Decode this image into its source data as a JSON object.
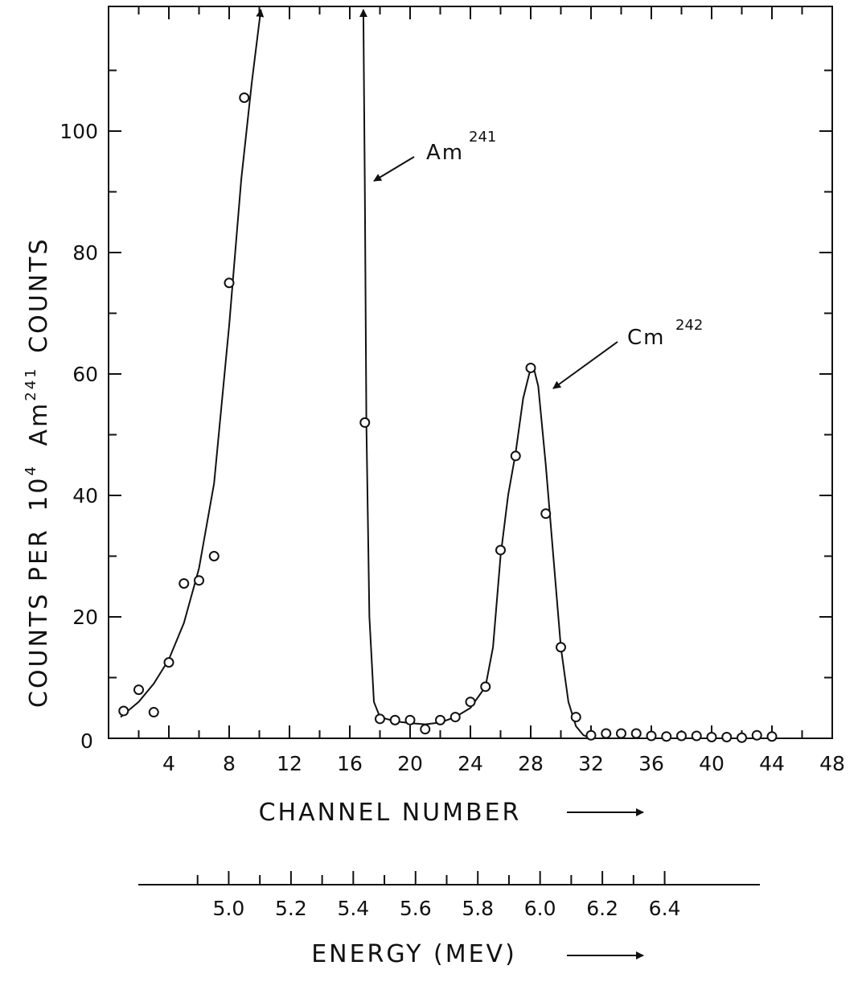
{
  "chart_data": {
    "type": "scatter",
    "ylabel": {
      "base": "COUNTS PER",
      "ten": "10",
      "ten_exp": "4",
      "iso": "Am",
      "iso_exp": "241",
      "tail": "COUNTS"
    },
    "xlabel": "CHANNEL NUMBER",
    "xlim": [
      0,
      48
    ],
    "ylim": [
      0,
      120
    ],
    "x_ticks": [
      4,
      8,
      12,
      16,
      20,
      24,
      28,
      32,
      36,
      40,
      44,
      48
    ],
    "x_tick_labels": [
      "4",
      "8",
      "12",
      "16",
      "20",
      "24",
      "28",
      "32",
      "36",
      "40",
      "44",
      "48"
    ],
    "y_ticks": [
      0,
      20,
      40,
      60,
      80,
      100
    ],
    "y_tick_labels": [
      "0",
      "20",
      "40",
      "60",
      "80",
      "100"
    ],
    "points": {
      "x": [
        1,
        2,
        3,
        4,
        5,
        6,
        7,
        8,
        9,
        17,
        18,
        19,
        20,
        21,
        22,
        23,
        24,
        25,
        26,
        27,
        28,
        29,
        30,
        31,
        32,
        33,
        34,
        35,
        36,
        37,
        38,
        39,
        40,
        41,
        42,
        43,
        44
      ],
      "y": [
        4.5,
        8,
        4.3,
        12.5,
        25.5,
        26,
        30,
        75,
        105.5,
        52,
        3.2,
        3,
        3,
        1.5,
        3,
        3.5,
        6,
        8.5,
        31,
        46.5,
        61,
        37,
        15,
        3.5,
        0.5,
        0.8,
        0.8,
        0.8,
        0.4,
        0.3,
        0.4,
        0.4,
        0.2,
        0.2,
        0.1,
        0.5,
        0.3
      ]
    },
    "curves": [
      {
        "x": [
          0.8,
          2,
          3,
          4,
          5,
          6,
          7,
          8,
          8.8,
          9.5,
          10.1
        ],
        "y": [
          3.5,
          6,
          9,
          13,
          19,
          28,
          42,
          68,
          92,
          108,
          120
        ]
      },
      {
        "x": [
          16.9,
          17.0,
          17.1,
          17.3,
          17.6,
          18,
          19,
          20,
          21,
          22,
          23,
          24,
          25,
          25.5,
          26,
          26.5,
          27,
          27.5,
          28,
          28.2,
          28.5,
          29,
          29.5,
          30,
          30.5,
          31,
          31.5,
          32,
          36,
          40,
          44,
          48
        ],
        "y": [
          120,
          90,
          52,
          20,
          6,
          3.5,
          2.8,
          2.5,
          2.3,
          2.6,
          3.5,
          5,
          8.5,
          15,
          30,
          40,
          47,
          56,
          61,
          61,
          58,
          45,
          30,
          15,
          6,
          2,
          0.5,
          0,
          0,
          0,
          0,
          0
        ]
      }
    ],
    "annotations": [
      {
        "text": "Am",
        "sup": "241"
      },
      {
        "text": "Cm",
        "sup": "242"
      }
    ],
    "secondary_axis": {
      "label": "ENERGY (MEV)",
      "tick_labels": [
        "5.0",
        "5.2",
        "5.4",
        "5.6",
        "5.8",
        "6.0",
        "6.2",
        "6.4"
      ],
      "ticks": [
        5.0,
        5.2,
        5.4,
        5.6,
        5.8,
        6.0,
        6.2,
        6.4
      ],
      "minor_ticks": [
        4.9,
        5.1,
        5.3,
        5.5,
        5.7,
        5.9,
        6.1,
        6.3
      ],
      "lim": [
        4.8,
        6.6
      ]
    }
  }
}
